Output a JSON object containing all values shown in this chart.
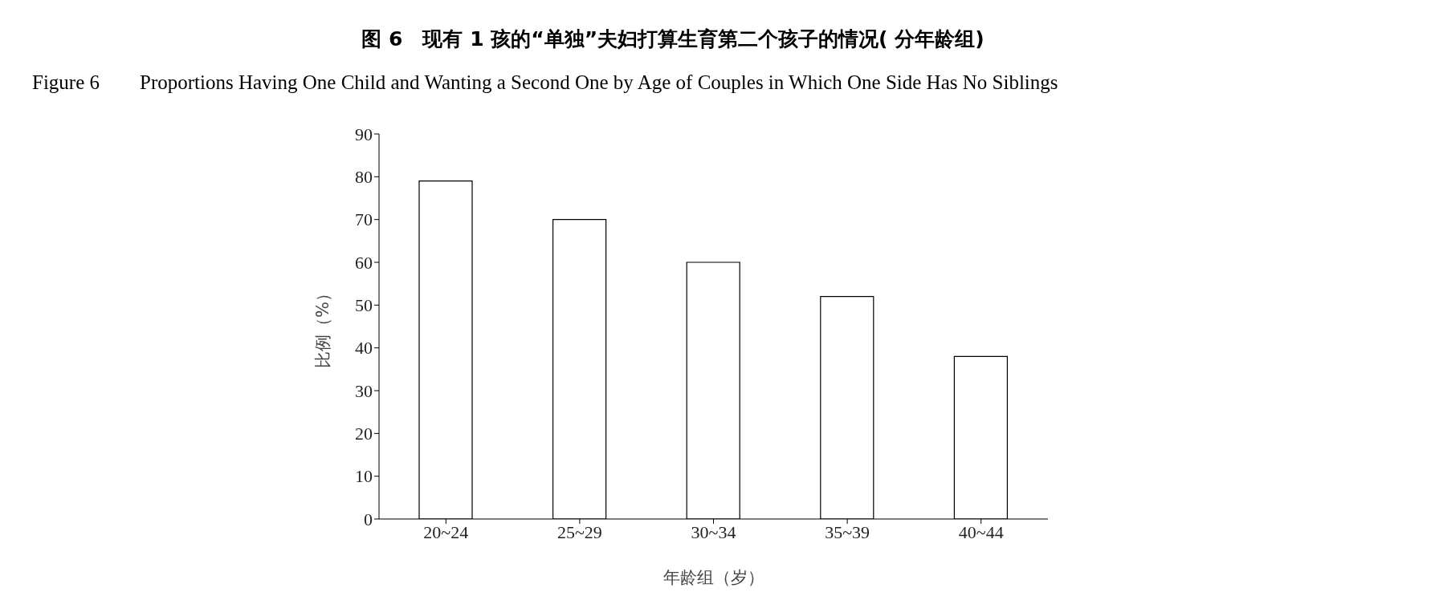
{
  "chart_data": {
    "type": "bar",
    "title": "图 6　现有 1 孩的“单独”夫妇打算生育第二个孩子的情况( 分年龄组)",
    "subtitle": "Figure 6　　Proportions Having One Child and Wanting a Second One by Age of Couples in Which One Side Has No Siblings",
    "xlabel": "年龄组（岁）",
    "ylabel": "比例（%）",
    "categories": [
      "20~24",
      "25~29",
      "30~34",
      "35~39",
      "40~44"
    ],
    "values": [
      79,
      70,
      60,
      52,
      38
    ],
    "color": "#ffffff",
    "ylim": [
      0,
      90
    ],
    "yticks": [
      0,
      10,
      20,
      30,
      40,
      50,
      60,
      70,
      80,
      90
    ],
    "grid": false,
    "legend": false
  }
}
